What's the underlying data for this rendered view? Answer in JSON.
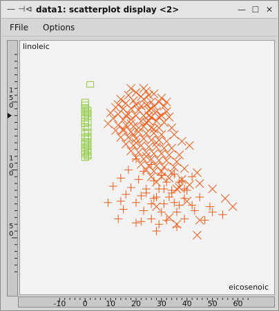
{
  "window": {
    "title": "data1: scatterplot display  <2>",
    "buttons": [
      "minimize",
      "maximize",
      "close"
    ]
  },
  "menu": {
    "file_label": "FFile",
    "options_label": "Options"
  },
  "colors": {
    "orange": "#f05a14",
    "green": "#8cc83c",
    "plot_bg": "#f2f2f2"
  },
  "chart_data": {
    "type": "scatter",
    "xlabel": "eicosenoic",
    "ylabel": "linoleic",
    "x_ticks": [
      "-10",
      "0",
      "10",
      "20",
      "30",
      "40",
      "50",
      "60"
    ],
    "y_ticks": [
      "150",
      "100",
      "50"
    ],
    "xlim": [
      -12,
      68
    ],
    "ylim": [
      20,
      185
    ],
    "grid": false,
    "series": [
      {
        "marker": "square",
        "color": "#8cc83c",
        "points": [
          [
            2,
            163
          ],
          [
            0,
            150
          ],
          [
            0,
            148
          ],
          [
            0,
            146
          ],
          [
            0,
            145
          ],
          [
            1,
            144
          ],
          [
            0,
            143
          ],
          [
            1,
            142
          ],
          [
            1,
            141
          ],
          [
            0,
            140
          ],
          [
            1,
            139
          ],
          [
            0,
            138
          ],
          [
            0,
            136
          ],
          [
            1,
            135
          ],
          [
            0,
            134
          ],
          [
            0,
            132
          ],
          [
            1,
            131
          ],
          [
            1,
            128
          ],
          [
            0,
            127
          ],
          [
            1,
            125
          ],
          [
            0,
            124
          ],
          [
            1,
            123
          ],
          [
            0,
            121
          ],
          [
            1,
            120
          ],
          [
            0,
            119
          ],
          [
            1,
            118
          ],
          [
            1,
            117
          ],
          [
            0,
            116
          ],
          [
            1,
            115
          ],
          [
            0,
            114
          ],
          [
            1,
            113
          ],
          [
            0,
            112
          ],
          [
            1,
            111
          ],
          [
            1,
            110
          ],
          [
            0,
            109
          ]
        ]
      },
      {
        "marker": "x",
        "color": "#f05a14",
        "points": [
          [
            18,
            160
          ],
          [
            20,
            157
          ],
          [
            24,
            158
          ],
          [
            27,
            156
          ],
          [
            17,
            155
          ],
          [
            22,
            154
          ],
          [
            25,
            155
          ],
          [
            30,
            153
          ],
          [
            14,
            152
          ],
          [
            19,
            151
          ],
          [
            23,
            152
          ],
          [
            26,
            150
          ],
          [
            29,
            150
          ],
          [
            16,
            149
          ],
          [
            20,
            148
          ],
          [
            24,
            148
          ],
          [
            27,
            147
          ],
          [
            31,
            147
          ],
          [
            12,
            146
          ],
          [
            15,
            145
          ],
          [
            18,
            145
          ],
          [
            21,
            144
          ],
          [
            25,
            144
          ],
          [
            28,
            143
          ],
          [
            32,
            143
          ],
          [
            10,
            142
          ],
          [
            13,
            141
          ],
          [
            17,
            141
          ],
          [
            20,
            140
          ],
          [
            23,
            140
          ],
          [
            26,
            139
          ],
          [
            29,
            139
          ],
          [
            33,
            139
          ],
          [
            11,
            138
          ],
          [
            15,
            137
          ],
          [
            18,
            137
          ],
          [
            22,
            136
          ],
          [
            25,
            136
          ],
          [
            28,
            136
          ],
          [
            31,
            135
          ],
          [
            9,
            134
          ],
          [
            13,
            133
          ],
          [
            16,
            133
          ],
          [
            19,
            132
          ],
          [
            23,
            132
          ],
          [
            26,
            131
          ],
          [
            29,
            131
          ],
          [
            34,
            131
          ],
          [
            12,
            129
          ],
          [
            15,
            129
          ],
          [
            18,
            128
          ],
          [
            21,
            128
          ],
          [
            24,
            127
          ],
          [
            27,
            127
          ],
          [
            30,
            126
          ],
          [
            35,
            126
          ],
          [
            14,
            124
          ],
          [
            17,
            124
          ],
          [
            20,
            123
          ],
          [
            23,
            123
          ],
          [
            26,
            122
          ],
          [
            29,
            122
          ],
          [
            32,
            121
          ],
          [
            38,
            121
          ],
          [
            16,
            119
          ],
          [
            19,
            118
          ],
          [
            22,
            118
          ],
          [
            25,
            117
          ],
          [
            28,
            117
          ],
          [
            31,
            116
          ],
          [
            34,
            116
          ],
          [
            41,
            118
          ],
          [
            18,
            114
          ],
          [
            21,
            113
          ],
          [
            24,
            113
          ],
          [
            27,
            112
          ],
          [
            30,
            112
          ],
          [
            33,
            111
          ],
          [
            37,
            111
          ],
          [
            20,
            109
          ],
          [
            23,
            108
          ],
          [
            26,
            108
          ],
          [
            29,
            107
          ],
          [
            32,
            107
          ],
          [
            36,
            106
          ],
          [
            22,
            104
          ],
          [
            25,
            103
          ],
          [
            28,
            103
          ],
          [
            31,
            102
          ],
          [
            35,
            102
          ],
          [
            39,
            101
          ],
          [
            24,
            100
          ],
          [
            27,
            99
          ],
          [
            30,
            99
          ],
          [
            34,
            98
          ],
          [
            44,
            98
          ],
          [
            26,
            95
          ],
          [
            33,
            94
          ],
          [
            38,
            93
          ],
          [
            28,
            91
          ],
          [
            41,
            89
          ],
          [
            36,
            86
          ],
          [
            20,
            120
          ],
          [
            18,
            134
          ],
          [
            22,
            147
          ],
          [
            25,
            140
          ],
          [
            21,
            131
          ],
          [
            19,
            126
          ],
          [
            24,
            135
          ],
          [
            27,
            130
          ],
          [
            30,
            140
          ],
          [
            16,
            140
          ],
          [
            13,
            148
          ],
          [
            23,
            160
          ],
          [
            26,
            145
          ],
          [
            32,
            150
          ],
          [
            15,
            130
          ],
          [
            28,
            120
          ],
          [
            24,
            110
          ],
          [
            30,
            95
          ],
          [
            45,
            90
          ],
          [
            50,
            86
          ],
          [
            37,
            87
          ],
          [
            55,
            79
          ],
          [
            40,
            77
          ],
          [
            33,
            65
          ],
          [
            28,
            73
          ],
          [
            45,
            63
          ],
          [
            58,
            73
          ],
          [
            36,
            60
          ],
          [
            44,
            52
          ]
        ]
      },
      {
        "marker": "plus",
        "color": "#f05a14",
        "points": [
          [
            20,
            108
          ],
          [
            26,
            104
          ],
          [
            17,
            100
          ],
          [
            23,
            99
          ],
          [
            30,
            96
          ],
          [
            35,
            97
          ],
          [
            14,
            94
          ],
          [
            21,
            93
          ],
          [
            27,
            92
          ],
          [
            32,
            91
          ],
          [
            38,
            92
          ],
          [
            11,
            88
          ],
          [
            18,
            87
          ],
          [
            24,
            86
          ],
          [
            29,
            86
          ],
          [
            34,
            85
          ],
          [
            40,
            85
          ],
          [
            16,
            82
          ],
          [
            22,
            81
          ],
          [
            28,
            80
          ],
          [
            33,
            80
          ],
          [
            39,
            79
          ],
          [
            45,
            80
          ],
          [
            14,
            77
          ],
          [
            20,
            76
          ],
          [
            26,
            75
          ],
          [
            31,
            75
          ],
          [
            37,
            74
          ],
          [
            42,
            74
          ],
          [
            49,
            73
          ],
          [
            15,
            71
          ],
          [
            23,
            70
          ],
          [
            30,
            69
          ],
          [
            36,
            69
          ],
          [
            43,
            70
          ],
          [
            50,
            69
          ],
          [
            9,
            76
          ],
          [
            26,
            64
          ],
          [
            32,
            63
          ],
          [
            39,
            64
          ],
          [
            47,
            63
          ],
          [
            54,
            67
          ],
          [
            13,
            64
          ],
          [
            22,
            62
          ],
          [
            29,
            60
          ],
          [
            36,
            58
          ],
          [
            20,
            61
          ],
          [
            28,
            55
          ],
          [
            35,
            76
          ],
          [
            24,
            83
          ],
          [
            31,
            86
          ],
          [
            37,
            91
          ],
          [
            42,
            95
          ],
          [
            39,
            86
          ],
          [
            34,
            83
          ],
          [
            27,
            79
          ]
        ]
      }
    ]
  }
}
